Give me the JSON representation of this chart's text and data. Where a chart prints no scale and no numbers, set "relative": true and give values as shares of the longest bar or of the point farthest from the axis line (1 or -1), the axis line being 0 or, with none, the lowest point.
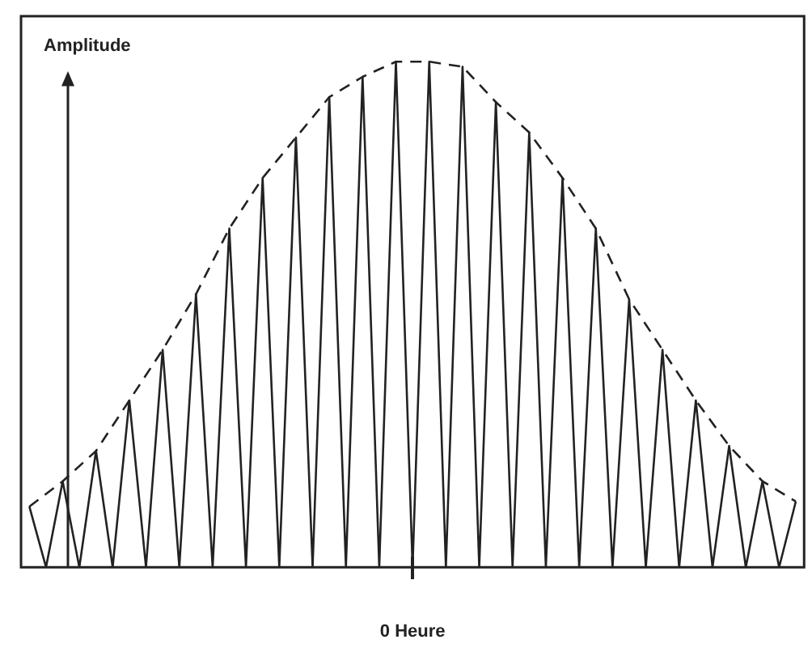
{
  "chart_data": {
    "type": "line",
    "ylabel": "Amplitude",
    "xlabel": "0 Heure",
    "relative": true,
    "grid": false,
    "legend": false,
    "marker": "none",
    "categories": [
      null,
      null,
      null,
      null,
      null,
      null,
      null,
      null,
      null,
      null,
      null,
      null,
      null,
      null,
      null,
      null,
      null,
      null,
      null,
      null,
      null,
      null,
      null,
      null,
      null,
      null,
      null,
      null,
      null,
      null,
      null,
      null,
      null,
      null,
      null,
      null,
      null,
      null,
      null,
      null,
      null,
      null,
      null,
      null,
      null,
      null,
      null
    ],
    "series": [
      {
        "color": "#222222",
        "line_style": "solid",
        "values": [
          0.12,
          0,
          0.17,
          0,
          0.23,
          0,
          0.33,
          0,
          0.43,
          0,
          0.54,
          0,
          0.67,
          0,
          0.77,
          0,
          0.85,
          0,
          0.93,
          0,
          0.97,
          0,
          1.0,
          0,
          1.0,
          0,
          0.99,
          0,
          0.92,
          0,
          0.86,
          0,
          0.77,
          0,
          0.67,
          0,
          0.53,
          0,
          0.43,
          0,
          0.33,
          0,
          0.24,
          0,
          0.17,
          0,
          0.13
        ]
      },
      {
        "color": "#222222",
        "line_style": "dashed",
        "values": [
          0.12,
          null,
          0.17,
          null,
          0.23,
          null,
          0.33,
          null,
          0.43,
          null,
          0.54,
          null,
          0.67,
          null,
          0.77,
          null,
          0.85,
          null,
          0.93,
          null,
          0.97,
          null,
          1.0,
          null,
          1.0,
          null,
          0.99,
          null,
          0.92,
          null,
          0.86,
          null,
          0.77,
          null,
          0.67,
          null,
          0.53,
          null,
          0.43,
          null,
          0.33,
          null,
          0.24,
          null,
          0.17,
          null,
          0.13
        ]
      }
    ]
  }
}
